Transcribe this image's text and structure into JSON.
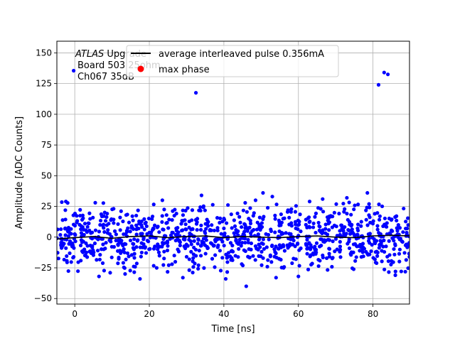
{
  "chart_data": {
    "type": "scatter",
    "xlabel": "Time [ns]",
    "ylabel": "Amplitude [ADC Counts]",
    "xlim": [
      -4.8,
      89.8
    ],
    "ylim": [
      -54.5,
      159.5
    ],
    "grid": true,
    "xticks": [
      0,
      20,
      40,
      60,
      80
    ],
    "yticks": [
      -50,
      -25,
      0,
      25,
      50,
      75,
      100,
      125,
      150
    ],
    "annotation": {
      "line1_italic": "ATLAS",
      "line1_rest": " Upgrade",
      "line2": "Board 503 25ohm",
      "line3": "Ch067 35dB"
    },
    "legend_position": "upper-center",
    "series": [
      {
        "name": "average interleaved pulse 0.356mA",
        "kind": "line",
        "color": "#000000",
        "x": [
          -4.8,
          0,
          5,
          10,
          15,
          20,
          25,
          30,
          35,
          40,
          45,
          50,
          55,
          60,
          65,
          70,
          75,
          80,
          85,
          89.8
        ],
        "y": [
          -1.5,
          -0.5,
          0.5,
          -1,
          0.5,
          1,
          -0.5,
          0.5,
          1,
          -0.5,
          0.5,
          0,
          -0.5,
          0.5,
          1,
          0,
          -0.5,
          1,
          1.5,
          1
        ]
      },
      {
        "name": "max phase",
        "kind": "marker",
        "color": "#ff0000",
        "x": [],
        "y": []
      },
      {
        "name": "",
        "kind": "scatter",
        "color": "#0000ff",
        "outliers": {
          "x": [
            -0.3,
            32.5,
            81.5,
            83,
            84
          ],
          "y": [
            135.5,
            117.5,
            124,
            134,
            132.5
          ]
        },
        "count": 1050,
        "x_range": [
          -4.8,
          89.8
        ],
        "spread": 13,
        "edge_points": {
          "x": [
            46,
            40.5,
            29,
            60,
            17.5,
            6.5,
            13.5,
            9.5,
            54,
            86,
            5.5,
            63,
            48.5,
            53,
            34,
            66.5,
            78.5,
            50.5,
            23.5,
            73
          ],
          "y": [
            -40,
            -34,
            -33,
            -32,
            -34,
            -32,
            -30,
            -29,
            -33,
            -31,
            28,
            29,
            30,
            33,
            34,
            31,
            36,
            36,
            30,
            32
          ]
        }
      }
    ]
  }
}
